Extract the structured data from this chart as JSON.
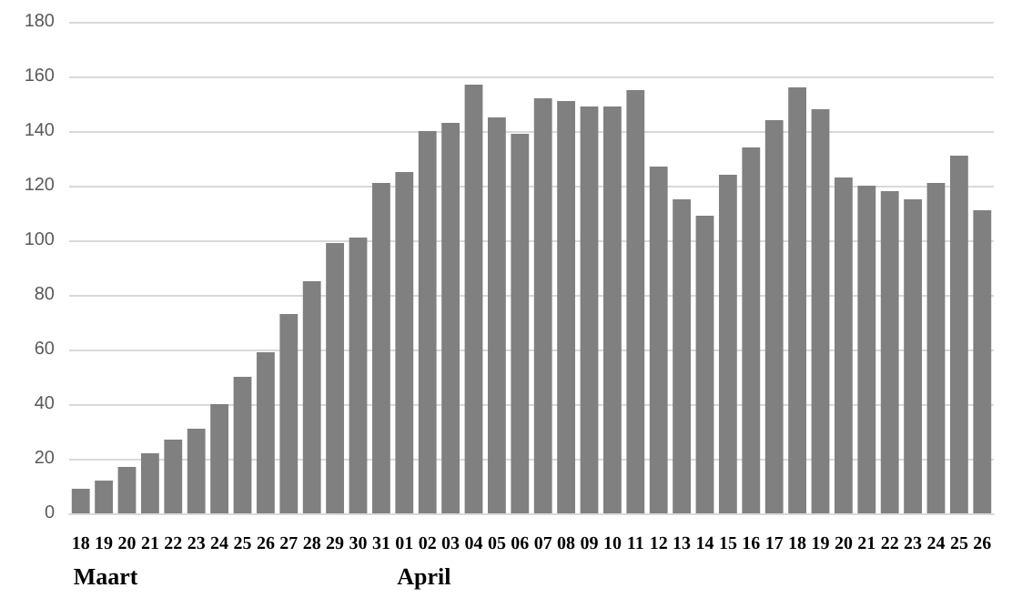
{
  "chart_data": {
    "type": "bar",
    "categories": [
      "18",
      "19",
      "20",
      "21",
      "22",
      "23",
      "24",
      "25",
      "26",
      "27",
      "28",
      "29",
      "30",
      "31",
      "01",
      "02",
      "03",
      "04",
      "05",
      "06",
      "07",
      "08",
      "09",
      "10",
      "11",
      "12",
      "13",
      "14",
      "15",
      "16",
      "17",
      "18",
      "19",
      "20",
      "21",
      "22",
      "23",
      "24",
      "25",
      "26"
    ],
    "values": [
      9,
      12,
      17,
      22,
      27,
      31,
      40,
      50,
      59,
      73,
      85,
      99,
      101,
      121,
      125,
      140,
      143,
      157,
      145,
      139,
      152,
      151,
      149,
      149,
      155,
      127,
      115,
      109,
      124,
      134,
      144,
      156,
      148,
      123,
      120,
      118,
      115,
      121,
      131,
      111
    ],
    "color": "#808080",
    "ylim": [
      0,
      180
    ],
    "yticks": [
      0,
      20,
      40,
      60,
      80,
      100,
      120,
      140,
      160,
      180
    ],
    "grid": "y",
    "annotations": [
      "Maart",
      "April"
    ]
  }
}
